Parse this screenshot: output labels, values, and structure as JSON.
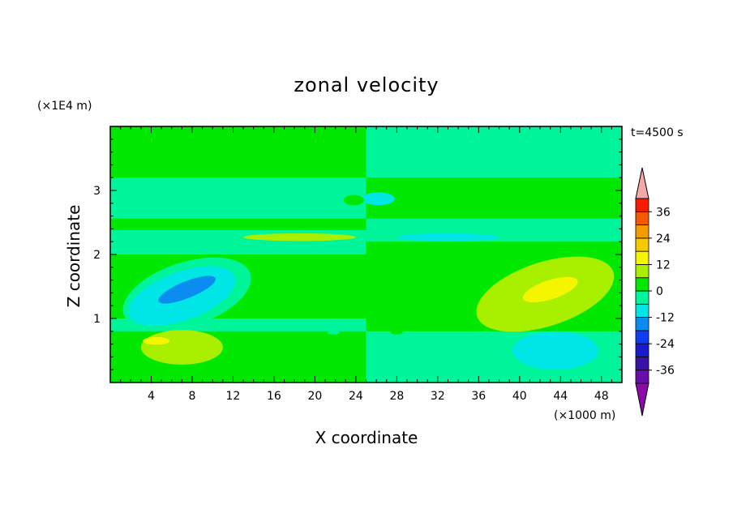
{
  "chart_data": {
    "type": "heatmap",
    "title": "zonal velocity",
    "time_label": "t=4500 s",
    "xlabel": "X coordinate",
    "ylabel": "Z coordinate",
    "x_unit": "(×1000 m)",
    "y_unit": "(×1E4 m)",
    "xlim": [
      0,
      50
    ],
    "ylim": [
      0,
      4
    ],
    "x_ticks": [
      4,
      8,
      12,
      16,
      20,
      24,
      28,
      32,
      36,
      40,
      44,
      48
    ],
    "x_tick_labels": [
      "4",
      "8",
      "12",
      "16",
      "20",
      "24",
      "28",
      "32",
      "36",
      "40",
      "44",
      "48"
    ],
    "y_ticks": [
      1,
      2,
      3
    ],
    "y_tick_labels": [
      "1",
      "2",
      "3"
    ],
    "colorbar": {
      "levels": [
        -42,
        -36,
        -30,
        -24,
        -18,
        -12,
        -6,
        0,
        6,
        12,
        18,
        24,
        30,
        36,
        42
      ],
      "tick_values": [
        36,
        24,
        12,
        0,
        -12,
        -24,
        -36
      ],
      "tick_labels": [
        "36",
        "24",
        "12",
        "0",
        "-12",
        "-24",
        "-36"
      ],
      "colors": [
        "#6a0dad",
        "#3a12a8",
        "#1a1ad0",
        "#0f3ef0",
        "#0a8cf0",
        "#00e6e6",
        "#00f59b",
        "#00e800",
        "#a8f000",
        "#f5f500",
        "#f5c800",
        "#f59b00",
        "#f55a00",
        "#f51c00"
      ],
      "under_color": "#8b0aa8",
      "over_color": "#f5a8a8"
    },
    "field": {
      "background_left": "#00e800",
      "background_right": "#00f59b",
      "bands": [
        {
          "z0": 2.56,
          "z1": 3.2,
          "color": "#00f59b",
          "x0": 0,
          "x1": 25
        },
        {
          "z0": 2.0,
          "z1": 2.38,
          "color": "#00f59b",
          "x0": 0,
          "x1": 25
        },
        {
          "z0": 0.8,
          "z1": 1.0,
          "color": "#00f59b",
          "x0": 0,
          "x1": 25
        },
        {
          "z0": 2.56,
          "z1": 3.2,
          "color": "#00e800",
          "x0": 25,
          "x1": 50
        },
        {
          "z0": 0.8,
          "z1": 2.2,
          "color": "#00e800",
          "x0": 25,
          "x1": 50
        }
      ],
      "blobs": [
        {
          "cx": 7.5,
          "cz": 1.38,
          "rx": 6.5,
          "rz": 0.5,
          "rot": -18,
          "color": "#00f59b"
        },
        {
          "cx": 7.0,
          "cz": 1.35,
          "rx": 5.5,
          "rz": 0.38,
          "rot": -20,
          "color": "#00e6e6"
        },
        {
          "cx": 7.5,
          "cz": 1.45,
          "rx": 3.0,
          "rz": 0.13,
          "rot": -22,
          "color": "#0a8cf0"
        },
        {
          "cx": 42.5,
          "cz": 1.38,
          "rx": 7.0,
          "rz": 0.5,
          "rot": -18,
          "color": "#a8f000"
        },
        {
          "cx": 43.0,
          "cz": 1.45,
          "rx": 2.8,
          "rz": 0.15,
          "rot": -18,
          "color": "#f5f500"
        },
        {
          "cx": 7.0,
          "cz": 0.55,
          "rx": 4.0,
          "rz": 0.27,
          "rot": 0,
          "color": "#a8f000"
        },
        {
          "cx": 4.5,
          "cz": 0.65,
          "rx": 1.3,
          "rz": 0.06,
          "rot": 0,
          "color": "#f5f500"
        },
        {
          "cx": 43.5,
          "cz": 0.5,
          "rx": 4.2,
          "rz": 0.3,
          "rot": 0,
          "color": "#00e6e6"
        },
        {
          "cx": 44.5,
          "cz": 0.63,
          "rx": 1.5,
          "rz": 0.07,
          "rot": 0,
          "color": "#00e6e6"
        },
        {
          "cx": 18.5,
          "cz": 2.27,
          "rx": 5.5,
          "rz": 0.06,
          "rot": 0,
          "color": "#a8f000"
        },
        {
          "cx": 33.0,
          "cz": 2.27,
          "rx": 5.0,
          "rz": 0.06,
          "rot": 0,
          "color": "#00e6e6"
        },
        {
          "cx": 26.2,
          "cz": 2.87,
          "rx": 1.6,
          "rz": 0.1,
          "rot": 0,
          "color": "#00e6e6"
        },
        {
          "cx": 23.8,
          "cz": 2.85,
          "rx": 1.0,
          "rz": 0.08,
          "rot": 0,
          "color": "#00e800"
        },
        {
          "cx": 21.8,
          "cz": 0.78,
          "rx": 0.6,
          "rz": 0.03,
          "rot": 0,
          "color": "#00f59b"
        },
        {
          "cx": 28.0,
          "cz": 0.78,
          "rx": 0.6,
          "rz": 0.03,
          "rot": 0,
          "color": "#00e800"
        }
      ]
    }
  }
}
